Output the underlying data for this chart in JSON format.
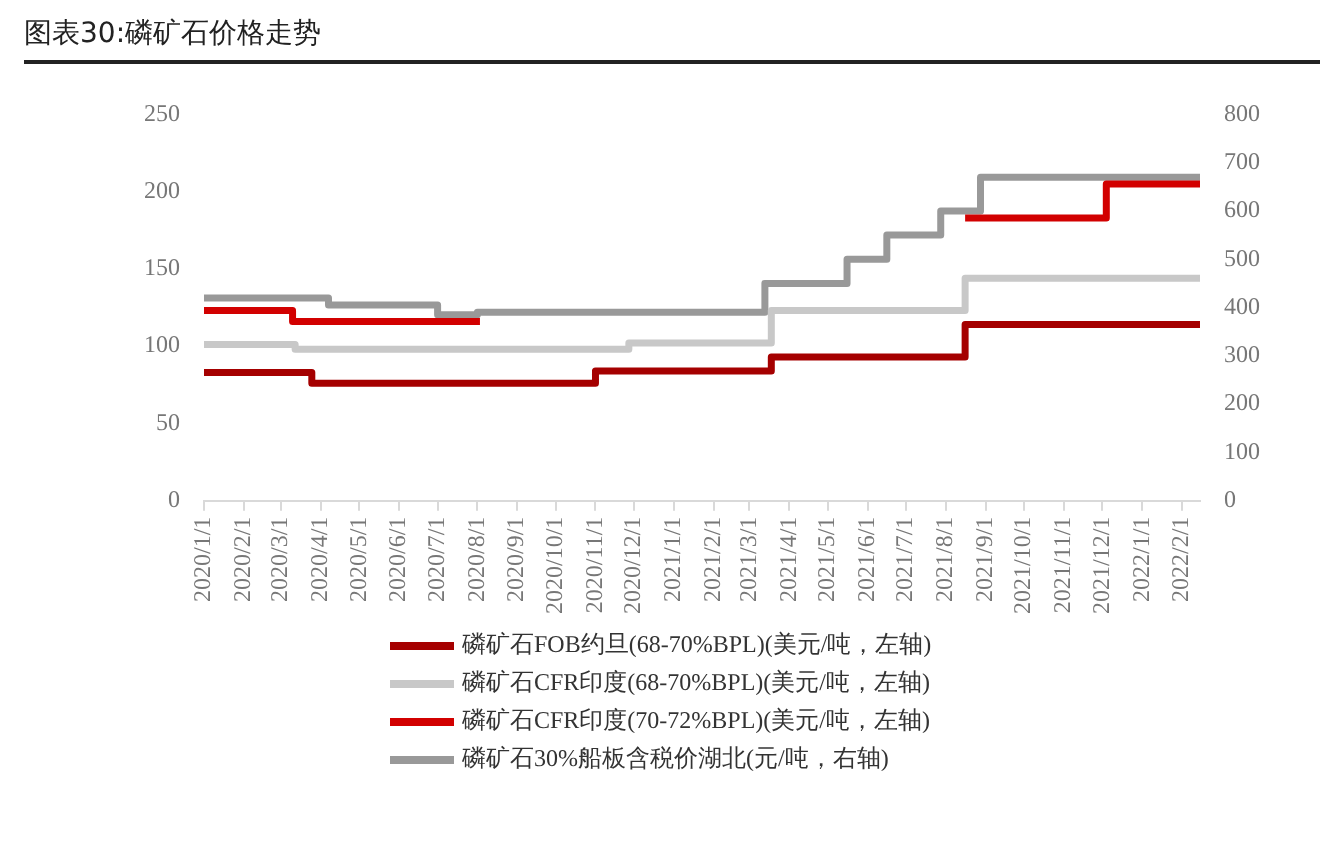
{
  "chart_data": {
    "type": "step",
    "title": "图表30:磷矿石价格走势",
    "xlim": [
      "2020-01-01",
      "2022-02-15"
    ],
    "xticks": [
      {
        "value": "2020-01-01",
        "label": "2020/1/1"
      },
      {
        "value": "2020-02-01",
        "label": "2020/2/1"
      },
      {
        "value": "2020-03-01",
        "label": "2020/3/1"
      },
      {
        "value": "2020-04-01",
        "label": "2020/4/1"
      },
      {
        "value": "2020-05-01",
        "label": "2020/5/1"
      },
      {
        "value": "2020-06-01",
        "label": "2020/6/1"
      },
      {
        "value": "2020-07-01",
        "label": "2020/7/1"
      },
      {
        "value": "2020-08-01",
        "label": "2020/8/1"
      },
      {
        "value": "2020-09-01",
        "label": "2020/9/1"
      },
      {
        "value": "2020-10-01",
        "label": "2020/10/1"
      },
      {
        "value": "2020-11-01",
        "label": "2020/11/1"
      },
      {
        "value": "2020-12-01",
        "label": "2020/12/1"
      },
      {
        "value": "2021-01-01",
        "label": "2021/1/1"
      },
      {
        "value": "2021-02-01",
        "label": "2021/2/1"
      },
      {
        "value": "2021-03-01",
        "label": "2021/3/1"
      },
      {
        "value": "2021-04-01",
        "label": "2021/4/1"
      },
      {
        "value": "2021-05-01",
        "label": "2021/5/1"
      },
      {
        "value": "2021-06-01",
        "label": "2021/6/1"
      },
      {
        "value": "2021-07-01",
        "label": "2021/7/1"
      },
      {
        "value": "2021-08-01",
        "label": "2021/8/1"
      },
      {
        "value": "2021-09-01",
        "label": "2021/9/1"
      },
      {
        "value": "2021-10-01",
        "label": "2021/10/1"
      },
      {
        "value": "2021-11-01",
        "label": "2021/11/1"
      },
      {
        "value": "2021-12-01",
        "label": "2021/12/1"
      },
      {
        "value": "2022-01-01",
        "label": "2022/1/1"
      },
      {
        "value": "2022-02-01",
        "label": "2022/2/1"
      }
    ],
    "ylim": [
      0,
      250
    ],
    "yticks": [
      0,
      50,
      100,
      150,
      200,
      250
    ],
    "y2lim": [
      0,
      800
    ],
    "y2ticks": [
      0,
      100,
      200,
      300,
      400,
      500,
      600,
      700,
      800
    ],
    "legend": "bottom",
    "grid": false,
    "marker": "none",
    "line_style": "solid",
    "series": [
      {
        "name": "磷矿石FOB约旦(68-70%BPL)(美元/吨，左轴)",
        "color": "#a50000",
        "x": [
          "2020-01-01",
          "2020-03-25",
          "2020-11-01",
          "2021-03-18",
          "2021-08-16",
          "2022-02-15"
        ],
        "values": [
          83,
          76,
          84,
          93,
          114,
          114
        ]
      },
      {
        "name": "磷矿石CFR印度(68-70%BPL)(美元/吨，左轴)",
        "color": "#c8c8c8",
        "x": [
          "2020-01-01",
          "2020-03-12",
          "2020-11-27",
          "2021-03-18",
          "2021-08-16",
          "2022-02-15"
        ],
        "values": [
          101,
          98,
          102,
          123,
          144,
          144
        ]
      },
      {
        "name": "磷矿石CFR印度(70-72%BPL)(美元/吨，左轴)",
        "color": "#d20000",
        "x": [
          "2020-01-01",
          "2020-03-10",
          "2020-08-03",
          "2020-08-04",
          "2021-08-16",
          "2021-12-04",
          "2022-02-15"
        ],
        "values": [
          123,
          116,
          116,
          null,
          183,
          205,
          205
        ]
      },
      {
        "name": "磷矿石30%船板含税价湖北(元/吨，右轴)",
        "color": "#999999",
        "axis": "y2",
        "x": [
          "2020-01-01",
          "2020-04-07",
          "2020-07-01",
          "2020-08-01",
          "2021-03-13",
          "2021-05-16",
          "2021-06-16",
          "2021-07-28",
          "2021-08-28",
          "2022-02-15"
        ],
        "values": [
          420,
          405,
          385,
          390,
          450,
          500,
          550,
          600,
          670,
          670
        ]
      }
    ]
  }
}
